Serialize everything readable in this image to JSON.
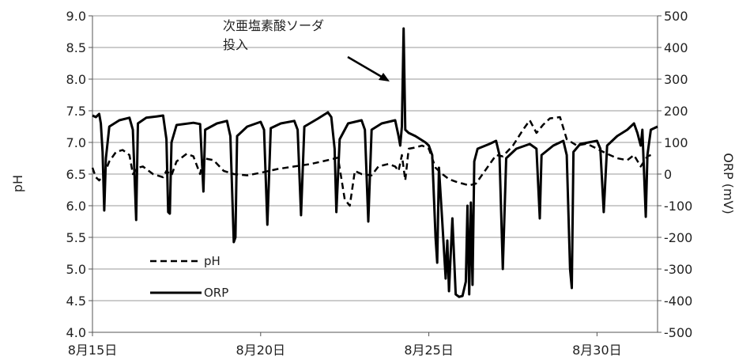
{
  "chart_data": {
    "type": "line",
    "title": "",
    "left_axis": {
      "label": "pH",
      "range": [
        4.0,
        9.0
      ],
      "ticks": [
        "4.0",
        "4.5",
        "5.0",
        "5.5",
        "6.0",
        "6.5",
        "7.0",
        "7.5",
        "8.0",
        "8.5",
        "9.0"
      ]
    },
    "right_axis": {
      "label": "ORP (mV)",
      "range": [
        -500,
        500
      ],
      "ticks": [
        "-500",
        "-400",
        "-300",
        "-200",
        "-100",
        "0",
        "100",
        "200",
        "300",
        "400",
        "500"
      ]
    },
    "x_axis": {
      "label": "",
      "unit": "day of August",
      "range": [
        15,
        31.8
      ],
      "ticks": [
        {
          "value": 15,
          "label": "8月15日"
        },
        {
          "value": 20,
          "label": "8月20日"
        },
        {
          "value": 25,
          "label": "8月25日"
        },
        {
          "value": 30,
          "label": "8月30日"
        }
      ]
    },
    "grid": "horizontal",
    "legend": {
      "placement": "bottom-left inside plot",
      "entries": [
        {
          "name": "pH",
          "style": "dashed"
        },
        {
          "name": "ORP",
          "style": "solid"
        }
      ]
    },
    "annotation": {
      "lines": [
        "次亜塩素酸ソーダ",
        "投入"
      ],
      "points_to_day": 24.25
    },
    "series": [
      {
        "name": "pH",
        "axis": "left",
        "style": "dashed",
        "points": [
          [
            15.0,
            6.6
          ],
          [
            15.1,
            6.45
          ],
          [
            15.2,
            6.4
          ],
          [
            15.35,
            6.5
          ],
          [
            15.5,
            6.7
          ],
          [
            15.7,
            6.85
          ],
          [
            15.9,
            6.88
          ],
          [
            16.1,
            6.8
          ],
          [
            16.2,
            6.5
          ],
          [
            16.35,
            6.6
          ],
          [
            16.5,
            6.62
          ],
          [
            16.8,
            6.5
          ],
          [
            17.1,
            6.45
          ],
          [
            17.2,
            6.55
          ],
          [
            17.35,
            6.48
          ],
          [
            17.5,
            6.7
          ],
          [
            17.8,
            6.82
          ],
          [
            18.0,
            6.78
          ],
          [
            18.2,
            6.5
          ],
          [
            18.3,
            6.75
          ],
          [
            18.6,
            6.72
          ],
          [
            18.9,
            6.55
          ],
          [
            19.2,
            6.5
          ],
          [
            19.6,
            6.48
          ],
          [
            20.0,
            6.52
          ],
          [
            20.5,
            6.58
          ],
          [
            21.0,
            6.62
          ],
          [
            21.5,
            6.66
          ],
          [
            22.0,
            6.72
          ],
          [
            22.3,
            6.76
          ],
          [
            22.5,
            6.1
          ],
          [
            22.65,
            6.0
          ],
          [
            22.8,
            6.55
          ],
          [
            23.0,
            6.5
          ],
          [
            23.3,
            6.48
          ],
          [
            23.5,
            6.62
          ],
          [
            23.8,
            6.66
          ],
          [
            24.0,
            6.62
          ],
          [
            24.1,
            6.55
          ],
          [
            24.2,
            6.8
          ],
          [
            24.3,
            6.4
          ],
          [
            24.4,
            6.9
          ],
          [
            24.6,
            6.92
          ],
          [
            24.8,
            6.95
          ],
          [
            25.0,
            6.9
          ],
          [
            25.2,
            6.6
          ],
          [
            25.4,
            6.5
          ],
          [
            25.6,
            6.42
          ],
          [
            25.8,
            6.38
          ],
          [
            26.0,
            6.35
          ],
          [
            26.2,
            6.32
          ],
          [
            26.4,
            6.35
          ],
          [
            26.6,
            6.5
          ],
          [
            26.8,
            6.65
          ],
          [
            27.0,
            6.8
          ],
          [
            27.2,
            6.78
          ],
          [
            27.5,
            6.95
          ],
          [
            27.8,
            7.2
          ],
          [
            28.0,
            7.35
          ],
          [
            28.2,
            7.15
          ],
          [
            28.4,
            7.28
          ],
          [
            28.6,
            7.38
          ],
          [
            28.9,
            7.4
          ],
          [
            29.1,
            7.05
          ],
          [
            29.4,
            6.95
          ],
          [
            29.7,
            6.98
          ],
          [
            30.0,
            6.9
          ],
          [
            30.3,
            6.82
          ],
          [
            30.6,
            6.75
          ],
          [
            30.9,
            6.72
          ],
          [
            31.1,
            6.8
          ],
          [
            31.3,
            6.62
          ],
          [
            31.5,
            6.78
          ],
          [
            31.7,
            6.82
          ]
        ]
      },
      {
        "name": "ORP",
        "axis": "right",
        "style": "solid",
        "points": [
          [
            15.0,
            185
          ],
          [
            15.1,
            180
          ],
          [
            15.2,
            190
          ],
          [
            15.25,
            160
          ],
          [
            15.3,
            70
          ],
          [
            15.35,
            -115
          ],
          [
            15.4,
            50
          ],
          [
            15.5,
            150
          ],
          [
            15.8,
            170
          ],
          [
            16.1,
            178
          ],
          [
            16.2,
            140
          ],
          [
            16.3,
            -145
          ],
          [
            16.35,
            160
          ],
          [
            16.6,
            178
          ],
          [
            16.9,
            182
          ],
          [
            17.1,
            185
          ],
          [
            17.2,
            110
          ],
          [
            17.25,
            -120
          ],
          [
            17.3,
            -125
          ],
          [
            17.35,
            100
          ],
          [
            17.5,
            155
          ],
          [
            18.0,
            162
          ],
          [
            18.2,
            158
          ],
          [
            18.3,
            -55
          ],
          [
            18.35,
            140
          ],
          [
            18.7,
            160
          ],
          [
            19.0,
            168
          ],
          [
            19.1,
            120
          ],
          [
            19.2,
            -215
          ],
          [
            19.25,
            -200
          ],
          [
            19.3,
            120
          ],
          [
            19.6,
            150
          ],
          [
            20.0,
            165
          ],
          [
            20.1,
            140
          ],
          [
            20.2,
            -160
          ],
          [
            20.3,
            145
          ],
          [
            20.6,
            160
          ],
          [
            21.0,
            168
          ],
          [
            21.1,
            140
          ],
          [
            21.2,
            -130
          ],
          [
            21.3,
            150
          ],
          [
            21.7,
            175
          ],
          [
            22.0,
            195
          ],
          [
            22.1,
            180
          ],
          [
            22.2,
            80
          ],
          [
            22.25,
            -120
          ],
          [
            22.35,
            110
          ],
          [
            22.6,
            160
          ],
          [
            23.0,
            170
          ],
          [
            23.1,
            140
          ],
          [
            23.2,
            -150
          ],
          [
            23.3,
            140
          ],
          [
            23.6,
            160
          ],
          [
            24.0,
            170
          ],
          [
            24.1,
            120
          ],
          [
            24.15,
            90
          ],
          [
            24.2,
            150
          ],
          [
            24.25,
            460
          ],
          [
            24.3,
            140
          ],
          [
            24.4,
            130
          ],
          [
            24.6,
            120
          ],
          [
            24.9,
            100
          ],
          [
            25.0,
            90
          ],
          [
            25.1,
            60
          ],
          [
            25.2,
            -200
          ],
          [
            25.25,
            -280
          ],
          [
            25.3,
            20
          ],
          [
            25.4,
            -150
          ],
          [
            25.5,
            -330
          ],
          [
            25.55,
            -210
          ],
          [
            25.6,
            -370
          ],
          [
            25.7,
            -140
          ],
          [
            25.8,
            -380
          ],
          [
            25.9,
            -388
          ],
          [
            26.0,
            -385
          ],
          [
            26.1,
            -340
          ],
          [
            26.15,
            -100
          ],
          [
            26.2,
            -380
          ],
          [
            26.25,
            -90
          ],
          [
            26.3,
            -350
          ],
          [
            26.35,
            40
          ],
          [
            26.45,
            80
          ],
          [
            26.8,
            95
          ],
          [
            27.0,
            105
          ],
          [
            27.1,
            60
          ],
          [
            27.2,
            -300
          ],
          [
            27.3,
            50
          ],
          [
            27.6,
            80
          ],
          [
            28.0,
            95
          ],
          [
            28.2,
            80
          ],
          [
            28.3,
            -140
          ],
          [
            28.35,
            60
          ],
          [
            28.7,
            90
          ],
          [
            29.0,
            105
          ],
          [
            29.1,
            60
          ],
          [
            29.2,
            -300
          ],
          [
            29.25,
            -360
          ],
          [
            29.3,
            70
          ],
          [
            29.5,
            95
          ],
          [
            30.0,
            105
          ],
          [
            30.1,
            80
          ],
          [
            30.2,
            -120
          ],
          [
            30.3,
            90
          ],
          [
            30.6,
            120
          ],
          [
            30.9,
            140
          ],
          [
            31.1,
            160
          ],
          [
            31.2,
            130
          ],
          [
            31.3,
            90
          ],
          [
            31.35,
            140
          ],
          [
            31.45,
            -135
          ],
          [
            31.5,
            60
          ],
          [
            31.6,
            140
          ],
          [
            31.8,
            150
          ]
        ]
      }
    ]
  }
}
